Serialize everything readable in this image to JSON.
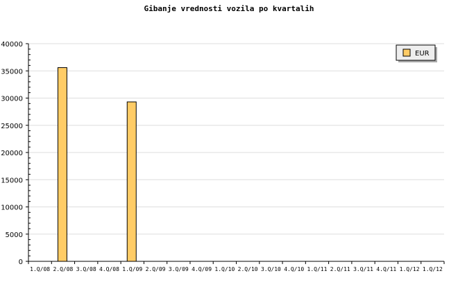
{
  "chart_data": {
    "type": "bar",
    "title": "Gibanje vrednosti vozila po kvartalih",
    "xlabel": "",
    "ylabel": "",
    "categories": [
      "1.Q/08",
      "2.Q/08",
      "3.Q/08",
      "4.Q/08",
      "1.Q/09",
      "2.Q/09",
      "3.Q/09",
      "4.Q/09",
      "1.Q/10",
      "2.Q/10",
      "3.Q/10",
      "4.Q/10",
      "1.Q/11",
      "2.Q/11",
      "3.Q/11",
      "4.Q/11",
      "1.Q/12",
      "1.Q/12"
    ],
    "series": [
      {
        "name": "EUR",
        "color": "#ffcc66",
        "values": [
          null,
          35600,
          null,
          null,
          29300,
          null,
          null,
          null,
          null,
          null,
          null,
          null,
          null,
          null,
          null,
          null,
          null,
          null
        ]
      }
    ],
    "ylim": [
      0,
      40000
    ],
    "yticks": [
      0,
      5000,
      10000,
      15000,
      20000,
      25000,
      30000,
      35000,
      40000
    ],
    "grid": true,
    "legend_placement": "top-right"
  }
}
